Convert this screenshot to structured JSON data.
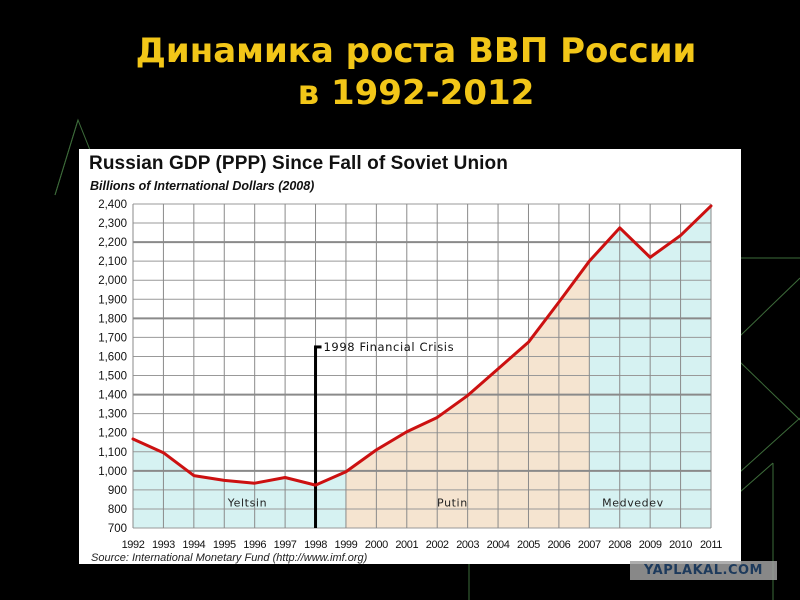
{
  "slide": {
    "title_line1": "Динамика роста ВВП России",
    "title_line2": "в 1992-2012",
    "title_color": "#f2c618",
    "background_color": "#000000",
    "watermark": "YAPLAKAL.COM"
  },
  "chart": {
    "title": "Russian GDP (PPP) Since Fall of Soviet Union",
    "subtitle": "Billions of International Dollars (2008)",
    "source": "Source: International Monetary Fund (http://www.imf.org)",
    "annotation": "1998 Financial Crisis",
    "era_labels": {
      "yeltsin": "Yeltsin",
      "putin": "Putin",
      "medvedev": "Medvedev"
    }
  },
  "chart_data": {
    "type": "line",
    "title": "Russian GDP (PPP) Since Fall of Soviet Union",
    "subtitle": "Billions of International Dollars (2008)",
    "xlabel": "",
    "ylabel": "Billions of International Dollars (2008)",
    "x": [
      "1992",
      "1993",
      "1994",
      "1995",
      "1996",
      "1997",
      "1998",
      "1999",
      "2000",
      "2001",
      "2002",
      "2003",
      "2004",
      "2005",
      "2006",
      "2007",
      "2008",
      "2009",
      "2010",
      "2011"
    ],
    "series": [
      {
        "name": "Russian GDP (PPP)",
        "color": "#cc1111",
        "values": [
          1167,
          1095,
          975,
          950,
          935,
          965,
          925,
          995,
          1110,
          1205,
          1280,
          1395,
          1535,
          1675,
          1885,
          2100,
          2275,
          2120,
          2235,
          2390
        ]
      }
    ],
    "ylim": [
      700,
      2400
    ],
    "yticks": [
      "700",
      "800",
      "900",
      "1,000",
      "1,100",
      "1,200",
      "1,300",
      "1,400",
      "1,500",
      "1,600",
      "1,700",
      "1,800",
      "1,900",
      "2,000",
      "2,100",
      "2,200",
      "2,300",
      "2,400"
    ],
    "grid": true,
    "legend": "none",
    "shaded_regions": [
      {
        "label": "Yeltsin",
        "from": "1992",
        "to": "1999",
        "color": "#d6f2f2"
      },
      {
        "label": "Putin",
        "from": "1999",
        "to": "2007",
        "color": "#f5e4d0"
      },
      {
        "label": "Medvedev",
        "from": "2007",
        "to": "2011",
        "color": "#d6f2f2"
      }
    ],
    "annotations": [
      {
        "text": "1998 Financial Crisis",
        "x": "1998",
        "type": "vertical-line"
      }
    ],
    "source": "Source: International Monetary Fund (http://www.imf.org)"
  }
}
